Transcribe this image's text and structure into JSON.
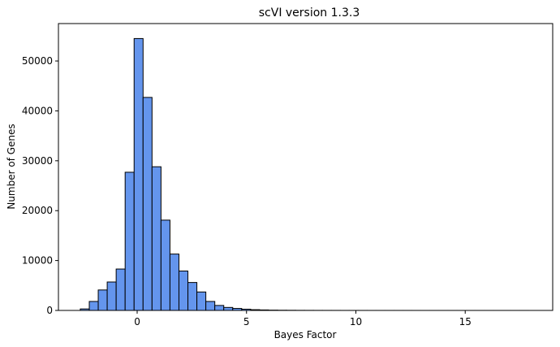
{
  "chart_data": {
    "type": "bar",
    "title": "scVI version 1.3.3",
    "xlabel": "Bayes Factor",
    "ylabel": "Number of Genes",
    "xlim": [
      -3.6,
      19.0
    ],
    "ylim": [
      0,
      57500
    ],
    "xticks": [
      0,
      5,
      10,
      15
    ],
    "yticks": [
      0,
      10000,
      20000,
      30000,
      40000,
      50000
    ],
    "bar_color": "#6495ed",
    "edge_color": "#000000",
    "grid": false,
    "bin_width": 0.41,
    "bin_edges_start": -2.6,
    "values": [
      300,
      1800,
      4100,
      5700,
      8300,
      27700,
      54500,
      42700,
      28800,
      18100,
      11300,
      7900,
      5600,
      3700,
      1800,
      1000,
      600,
      400,
      250,
      150,
      100,
      60,
      40,
      30,
      20,
      15,
      12,
      10,
      8,
      6,
      5,
      5,
      4,
      4,
      3,
      3,
      3,
      2,
      2,
      2,
      2,
      2,
      2,
      2,
      2,
      2,
      1,
      1,
      1,
      1
    ]
  }
}
